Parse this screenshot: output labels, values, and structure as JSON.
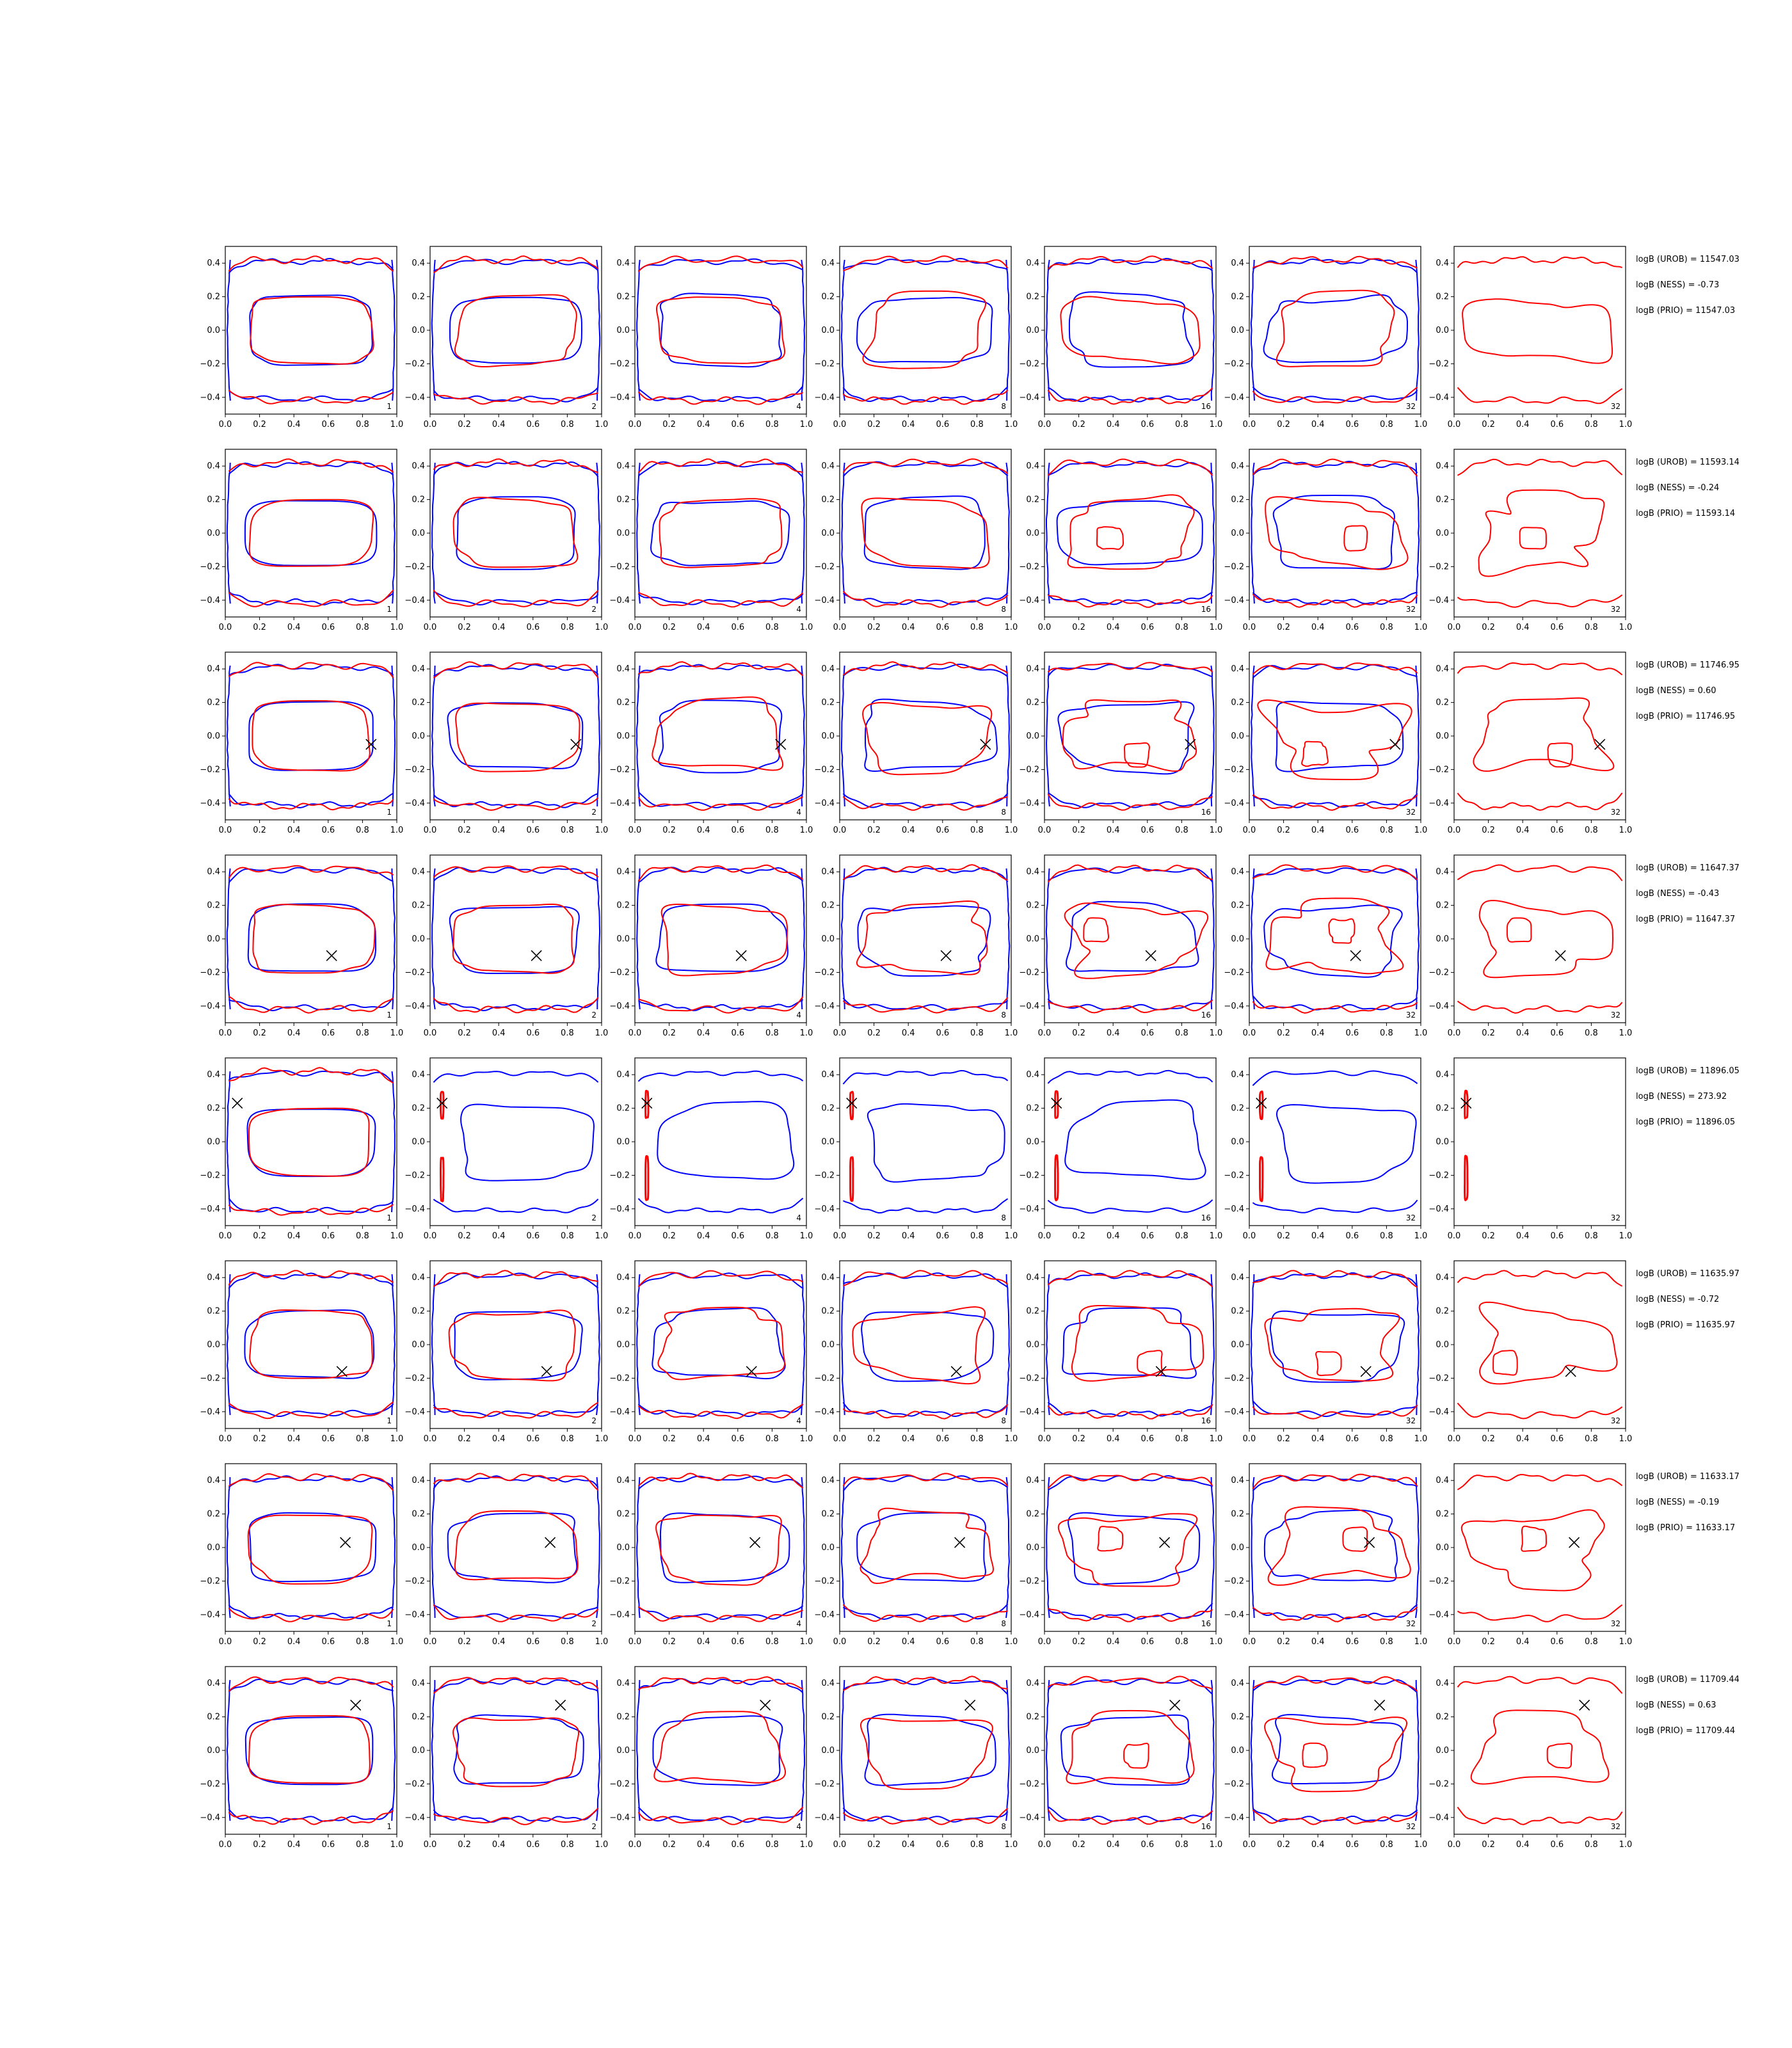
{
  "colors": {
    "blue": "#0000ff",
    "red": "#ff0000",
    "marker": "#000000",
    "axes": "#000000"
  },
  "chart_data": {
    "type": "contour_grid",
    "xlim": [
      0,
      1
    ],
    "ylim": [
      -0.5,
      0.5
    ],
    "xticks": [
      "0.0",
      "0.2",
      "0.4",
      "0.6",
      "0.8",
      "1.0"
    ],
    "yticks": [
      "0.4",
      "0.2",
      "0.0",
      "−0.2",
      "−0.4"
    ],
    "columns": [
      {
        "label": "1",
        "blue": true
      },
      {
        "label": "2",
        "blue": true
      },
      {
        "label": "4",
        "blue": true
      },
      {
        "label": "8",
        "blue": true
      },
      {
        "label": "16",
        "blue": true
      },
      {
        "label": "32",
        "blue": true
      },
      {
        "label": "32",
        "blue": false
      }
    ],
    "rows": [
      {
        "logB_UROB": "logB (UROB) = 11547.03",
        "logB_NESS": "logB (NESS) = -0.73",
        "logB_PRIO": "logB (PRIO) = 11547.03",
        "marker": null
      },
      {
        "logB_UROB": "logB (UROB) = 11593.14",
        "logB_NESS": "logB (NESS) = -0.24",
        "logB_PRIO": "logB (PRIO) = 11593.14",
        "marker": null
      },
      {
        "logB_UROB": "logB (UROB) = 11746.95",
        "logB_NESS": "logB (NESS) = 0.60",
        "logB_PRIO": "logB (PRIO) = 11746.95",
        "marker": [
          0.85,
          -0.05
        ]
      },
      {
        "logB_UROB": "logB (UROB) = 11647.37",
        "logB_NESS": "logB (NESS) = -0.43",
        "logB_PRIO": "logB (PRIO) = 11647.37",
        "marker": [
          0.62,
          -0.1
        ]
      },
      {
        "logB_UROB": "logB (UROB) = 11896.05",
        "logB_NESS": "logB (NESS) = 273.92",
        "logB_PRIO": "logB (PRIO) = 11896.05",
        "marker": [
          0.07,
          0.23
        ]
      },
      {
        "logB_UROB": "logB (UROB) = 11635.97",
        "logB_NESS": "logB (NESS) = -0.72",
        "logB_PRIO": "logB (PRIO) = 11635.97",
        "marker": [
          0.68,
          -0.16
        ]
      },
      {
        "logB_UROB": "logB (UROB) = 11633.17",
        "logB_NESS": "logB (NESS) = -0.19",
        "logB_PRIO": "logB (PRIO) = 11633.17",
        "marker": [
          0.7,
          0.03
        ]
      },
      {
        "logB_UROB": "logB (UROB) = 11709.44",
        "logB_NESS": "logB (NESS) = 0.63",
        "logB_PRIO": "logB (PRIO) = 11709.44",
        "marker": [
          0.76,
          0.27
        ]
      }
    ],
    "grid": false,
    "legend": "none"
  }
}
